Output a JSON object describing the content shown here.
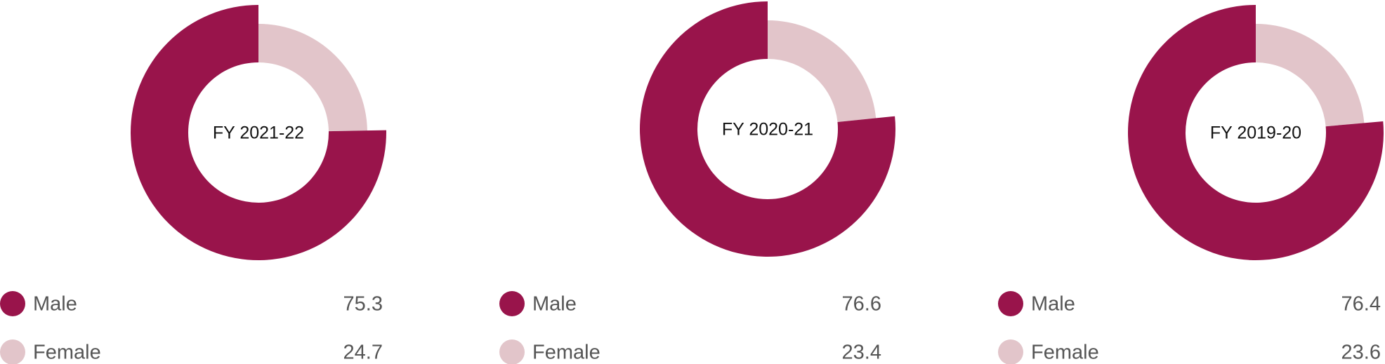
{
  "chart_data": [
    {
      "type": "donut",
      "title": "FY 2021-22",
      "categories": [
        "Male",
        "Female"
      ],
      "values": [
        75.3,
        24.7
      ],
      "colors": [
        "#99144b",
        "#e2c5ca"
      ]
    },
    {
      "type": "donut",
      "title": "FY 2020-21",
      "categories": [
        "Male",
        "Female"
      ],
      "values": [
        76.6,
        23.4
      ],
      "colors": [
        "#99144b",
        "#e2c5ca"
      ]
    },
    {
      "type": "donut",
      "title": "FY 2019-20",
      "categories": [
        "Male",
        "Female"
      ],
      "values": [
        76.4,
        23.6
      ],
      "colors": [
        "#99144b",
        "#e2c5ca"
      ]
    }
  ]
}
